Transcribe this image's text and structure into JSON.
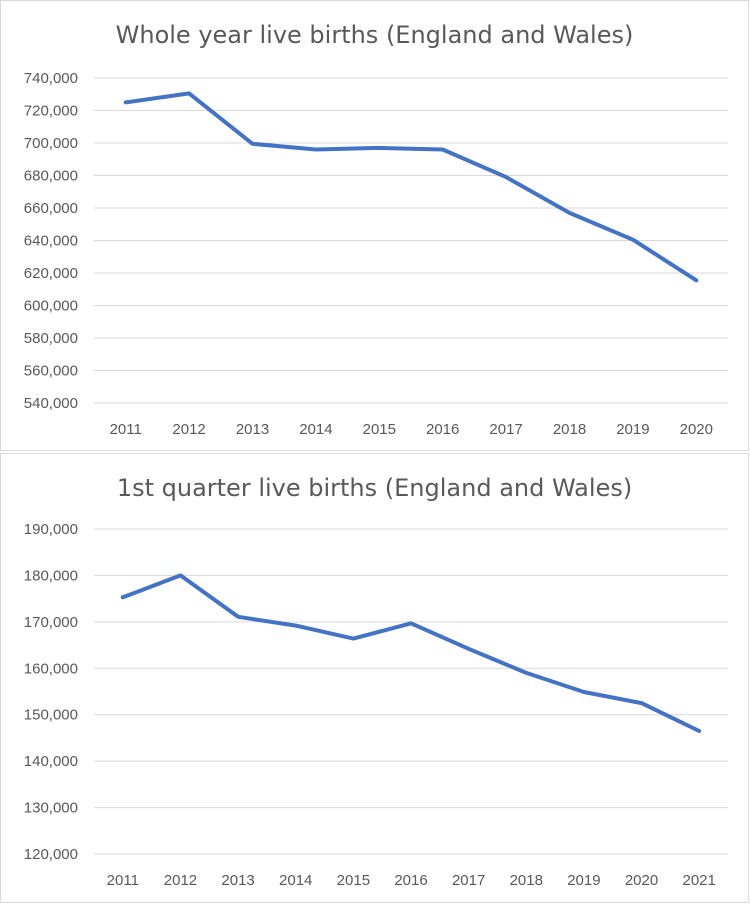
{
  "colors": {
    "series": "#4472c4",
    "grid": "#d9d9d9",
    "text": "#595959"
  },
  "chart_data": [
    {
      "type": "line",
      "title": "Whole year live births (England and Wales)",
      "xlabel": "",
      "ylabel": "",
      "grid": true,
      "legend": "none",
      "ylim": [
        540000,
        740000
      ],
      "yticks": [
        540000,
        560000,
        580000,
        600000,
        620000,
        640000,
        660000,
        680000,
        700000,
        720000,
        740000
      ],
      "ytick_labels": [
        "540,000",
        "560,000",
        "580,000",
        "600,000",
        "620,000",
        "640,000",
        "660,000",
        "680,000",
        "700,000",
        "720,000",
        "740,000"
      ],
      "categories": [
        "2011",
        "2012",
        "2013",
        "2014",
        "2015",
        "2016",
        "2017",
        "2018",
        "2019",
        "2020"
      ],
      "values": [
        725000,
        730500,
        699500,
        696000,
        697000,
        696000,
        679000,
        657000,
        640500,
        615500
      ]
    },
    {
      "type": "line",
      "title": "1st quarter live births (England and Wales)",
      "xlabel": "",
      "ylabel": "",
      "grid": true,
      "legend": "none",
      "ylim": [
        120000,
        190000
      ],
      "yticks": [
        120000,
        130000,
        140000,
        150000,
        160000,
        170000,
        180000,
        190000
      ],
      "ytick_labels": [
        "120,000",
        "130,000",
        "140,000",
        "150,000",
        "160,000",
        "170,000",
        "180,000",
        "190,000"
      ],
      "categories": [
        "2011",
        "2012",
        "2013",
        "2014",
        "2015",
        "2016",
        "2017",
        "2018",
        "2019",
        "2020",
        "2021"
      ],
      "values": [
        175300,
        180000,
        171100,
        169200,
        166400,
        169700,
        164200,
        159000,
        154900,
        152500,
        146500
      ]
    }
  ]
}
